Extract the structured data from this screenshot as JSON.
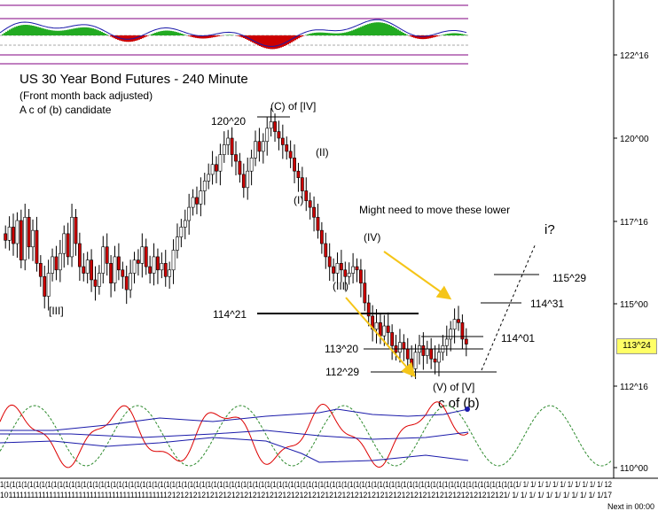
{
  "header": {
    "title": "US 30 Year Bond Futures - 240 Minute",
    "subtitle": "(Front month back adjusted)",
    "note": "A c of (b) candidate"
  },
  "current_price_label": "113^24",
  "footer": {
    "next_bar": "Next in 00:00"
  },
  "colors": {
    "up_bar": "#ffffff",
    "down_bar": "#cc0000",
    "histogram_up": "#22aa22",
    "histogram_down": "#cc0000",
    "price_box": "#ffff66",
    "arrow": "#f5c518",
    "cycle_green": "#2e8b2e",
    "osc_red": "#dd0000",
    "osc_blue": "#1a1aaa",
    "band_purple": "#800080"
  },
  "chart_data": {
    "type": "candlestick",
    "title": "US 30 Year Bond Futures - 240 Minute",
    "price_axis": {
      "ticks": [
        "122^16",
        "120^00",
        "117^16",
        "115^00",
        "112^16",
        "110^00"
      ],
      "ylim": [
        109.75,
        123.25
      ]
    },
    "x_tick_labels_row1": "1(1(1(1(1(1(1(1(1(1(1(1(1(1(1(1(1(1(1(1(1(1(1(1(1(1(1(1(1(1(1(1(1(1(1(1(1(1(1(1(1(1(1(1(1(1(1(1(1(1(1(1(1(1(1(1(1(1(1(1(1(1(1(1(1(1(1(1(1(1(1(1(1(1(1(1(1(1(1(1(1(1(1(1(1(1(1(1/ 1/ 1/ 1/ 1/ 1/ 1/ 1/ 1/ 1/ 1/ 1/ 12",
    "x_tick_labels_row2": "10111111111111111111111111111111111111111111121212121212121212121212121212121212121212121212121212121212121212121212121212121/ 1/ 1/ 1/ 1/ 1/ 1/ 1/ 1/ 1/ 1/ 1/17",
    "candles_close_path": [
      116.9,
      117.3,
      116.8,
      117.5,
      116.3,
      117.6,
      116.7,
      117.2,
      116.2,
      115.8,
      115.2,
      115.9,
      116.4,
      116.0,
      116.5,
      117.1,
      116.4,
      117.6,
      116.8,
      116.1,
      115.9,
      116.3,
      115.7,
      115.5,
      115.9,
      116.7,
      116.2,
      115.6,
      116.4,
      116.0,
      115.8,
      115.4,
      115.9,
      116.3,
      116.2,
      116.7,
      116.1,
      115.9,
      116.4,
      116.0,
      116.2,
      115.8,
      116.0,
      116.6,
      117.0,
      117.3,
      117.5,
      117.9,
      118.2,
      118.0,
      118.4,
      118.7,
      118.9,
      119.2,
      119.0,
      119.5,
      119.8,
      120.0,
      119.5,
      119.3,
      118.9,
      118.5,
      119.0,
      119.4,
      119.9,
      119.6,
      119.9,
      120.3,
      120.5,
      120.2,
      120.0,
      119.8,
      119.6,
      119.4,
      119.0,
      118.8,
      118.4,
      118.1,
      117.9,
      117.6,
      117.2,
      116.8,
      116.4,
      116.1,
      115.9,
      116.2,
      116.0,
      115.8,
      115.9,
      116.1,
      116.0,
      115.6,
      115.0,
      114.6,
      114.2,
      114.4,
      114.0,
      114.3,
      114.1,
      113.7,
      113.5,
      113.8,
      113.6,
      113.3,
      113.0,
      113.5,
      113.7,
      113.4,
      113.6,
      113.3,
      113.2,
      113.5,
      113.7,
      113.9,
      114.2,
      114.5,
      114.4,
      113.9,
      113.75
    ],
    "annotations": [
      "(C) of [IV]",
      "120^20",
      "(II)",
      "(I)",
      "Might need to move these lower",
      "(IV)",
      "(III)",
      "[III]",
      "114^21",
      "113^20",
      "112^29",
      "(V) of [V]",
      "c of (b)",
      "i?",
      "115^29",
      "114^31",
      "114^01"
    ],
    "levels": [
      {
        "label": "120^20",
        "value": 120.625
      },
      {
        "label": "114^21",
        "value": 114.656
      },
      {
        "label": "113^20",
        "value": 113.625
      },
      {
        "label": "112^29",
        "value": 112.906
      },
      {
        "label": "115^29",
        "value": 115.906
      },
      {
        "label": "114^31",
        "value": 114.969
      },
      {
        "label": "114^01",
        "value": 114.031
      }
    ],
    "grid": false,
    "legend": "none"
  },
  "panel_labels": {
    "c_of_b_1": "c of",
    "c_of_b_2": "(b)"
  }
}
